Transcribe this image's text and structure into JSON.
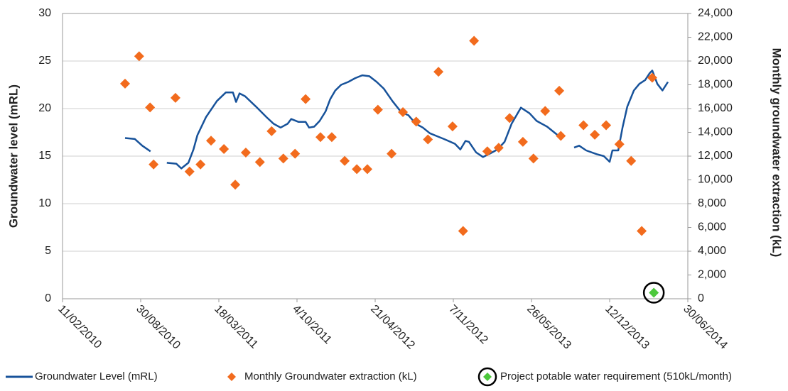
{
  "chart_data": {
    "type": "line",
    "y_label": "Groundwater level (mRL)",
    "y2_label": "Monthly groundwater extraction (kL)",
    "xlim": [
      "2010-02-11",
      "2014-06-30"
    ],
    "xticks": [
      {
        "value": "2010-02-11",
        "label": "11/02/2010"
      },
      {
        "value": "2010-08-30",
        "label": "30/08/2010"
      },
      {
        "value": "2011-03-18",
        "label": "18/03/2011"
      },
      {
        "value": "2011-10-04",
        "label": "4/10/2011"
      },
      {
        "value": "2012-04-21",
        "label": "21/04/2012"
      },
      {
        "value": "2012-11-07",
        "label": "7/11/2012"
      },
      {
        "value": "2013-05-26",
        "label": "26/05/2013"
      },
      {
        "value": "2013-12-12",
        "label": "12/12/2013"
      },
      {
        "value": "2014-06-30",
        "label": "30/06/2014"
      }
    ],
    "ylim": [
      0,
      30
    ],
    "yticks": [
      0,
      5,
      10,
      15,
      20,
      25,
      30
    ],
    "y2lim": [
      0,
      24000
    ],
    "y2ticks": [
      0,
      {
        "value": 2000,
        "label": "2,000"
      },
      {
        "value": 4000,
        "label": "4,000"
      },
      {
        "value": 6000,
        "label": "6,000"
      },
      {
        "value": 8000,
        "label": "8,000"
      },
      {
        "value": 10000,
        "label": "10,000"
      },
      {
        "value": 12000,
        "label": "12,000"
      },
      {
        "value": 14000,
        "label": "14,000"
      },
      {
        "value": 16000,
        "label": "16,000"
      },
      {
        "value": 18000,
        "label": "18,000"
      },
      {
        "value": 20000,
        "label": "20,000"
      },
      {
        "value": 22000,
        "label": "22,000"
      },
      {
        "value": 24000,
        "label": "24,000"
      }
    ],
    "grid": true,
    "legend": "bottom",
    "series": [
      {
        "name": "Groundwater Level (mRL)",
        "type": "line",
        "color": "#17529a",
        "x": [
          "2010-07-21",
          "2010-08-15",
          "2010-09-03",
          "2010-09-24",
          "2010-10-15",
          "2010-11-05",
          "2010-11-29",
          "2010-12-12",
          "2010-12-30",
          "2011-01-12",
          "2011-01-22",
          "2011-02-13",
          "2011-03-13",
          "2011-04-05",
          "2011-04-23",
          "2011-05-01",
          "2011-05-10",
          "2011-05-24",
          "2011-06-21",
          "2011-07-18",
          "2011-08-05",
          "2011-08-23",
          "2011-09-10",
          "2011-09-19",
          "2011-10-08",
          "2011-10-26",
          "2011-11-04",
          "2011-11-17",
          "2011-12-01",
          "2011-12-16",
          "2011-12-28",
          "2012-01-10",
          "2012-01-25",
          "2012-02-12",
          "2012-03-01",
          "2012-03-19",
          "2012-04-06",
          "2012-04-25",
          "2012-05-13",
          "2012-06-04",
          "2012-06-27",
          "2012-07-15",
          "2012-08-03",
          "2012-08-21",
          "2012-09-08",
          "2012-09-26",
          "2012-10-14",
          "2012-11-11",
          "2012-11-25",
          "2012-12-08",
          "2012-12-17",
          "2013-01-04",
          "2013-01-22",
          "2013-02-10",
          "2013-02-28",
          "2013-03-18",
          "2013-04-05",
          "2013-04-29",
          "2013-05-21",
          "2013-06-08",
          "2013-07-05",
          "2013-08-01",
          "2013-08-14",
          "2013-08-28",
          "2013-09-12",
          "2013-09-25",
          "2013-10-13",
          "2013-11-09",
          "2013-11-27",
          "2013-12-12",
          "2013-12-19",
          "2014-01-03",
          "2014-01-14",
          "2014-01-26",
          "2014-02-12",
          "2014-02-26",
          "2014-03-13",
          "2014-03-24",
          "2014-03-31",
          "2014-04-13",
          "2014-04-26",
          "2014-05-10"
        ],
        "values": [
          16.9,
          16.8,
          16.1,
          15.5,
          null,
          14.3,
          14.2,
          13.7,
          14.3,
          15.7,
          17.2,
          19.1,
          20.8,
          21.7,
          21.7,
          20.7,
          21.6,
          21.3,
          20.2,
          19.1,
          18.4,
          18.0,
          18.4,
          18.9,
          18.6,
          18.6,
          18.0,
          18.1,
          18.7,
          19.7,
          21.0,
          21.9,
          22.5,
          22.8,
          23.2,
          23.5,
          23.4,
          22.8,
          22.1,
          20.8,
          19.6,
          19.3,
          18.4,
          18.0,
          17.4,
          17.1,
          16.8,
          16.3,
          15.7,
          16.6,
          16.5,
          15.4,
          14.9,
          15.3,
          15.7,
          16.5,
          18.4,
          20.1,
          19.5,
          18.7,
          18.1,
          17.2,
          16.9,
          null,
          15.9,
          16.1,
          15.6,
          15.2,
          15.0,
          14.4,
          15.6,
          15.6,
          18.0,
          20.2,
          21.9,
          22.6,
          23.0,
          23.7,
          24.0,
          22.6,
          21.9,
          22.8
        ]
      },
      {
        "name": "Monthly Groundwater extraction (kL)",
        "type": "scatter",
        "axis": "y2",
        "color": "#f26b1d",
        "x": [
          "2010-07-21",
          "2010-08-26",
          "2010-09-23",
          "2010-10-02",
          "2010-11-27",
          "2011-01-02",
          "2011-01-30",
          "2011-02-26",
          "2011-03-31",
          "2011-04-29",
          "2011-05-26",
          "2011-07-01",
          "2011-07-31",
          "2011-08-30",
          "2011-09-29",
          "2011-10-26",
          "2011-12-03",
          "2012-01-01",
          "2012-02-03",
          "2012-03-05",
          "2012-04-01",
          "2012-04-28",
          "2012-06-02",
          "2012-07-01",
          "2012-08-04",
          "2012-09-03",
          "2012-09-30",
          "2012-11-05",
          "2012-12-02",
          "2012-12-30",
          "2013-02-02",
          "2013-03-03",
          "2013-03-31",
          "2013-05-04",
          "2013-05-31",
          "2013-06-30",
          "2013-08-05",
          "2013-08-09",
          "2013-10-06",
          "2013-11-04",
          "2013-12-03",
          "2014-01-06",
          "2014-02-05",
          "2014-03-04",
          "2014-03-31"
        ],
        "values": [
          18100,
          20400,
          16100,
          11300,
          16900,
          10700,
          11300,
          13300,
          12600,
          9600,
          12300,
          11500,
          14100,
          11800,
          12200,
          16800,
          13600,
          13600,
          11600,
          10900,
          10900,
          15900,
          12200,
          15700,
          14900,
          13400,
          19100,
          14500,
          5700,
          21700,
          12400,
          12700,
          15200,
          13200,
          11800,
          15800,
          17500,
          13700,
          14600,
          13800,
          14600,
          13000,
          11600,
          5700,
          18600
        ]
      },
      {
        "name": "Project potable water requirement (510kL/month)",
        "type": "scatter",
        "axis": "y2",
        "color": "#4cc83c",
        "x": [
          "2014-04-04"
        ],
        "values": [
          510
        ]
      }
    ]
  }
}
